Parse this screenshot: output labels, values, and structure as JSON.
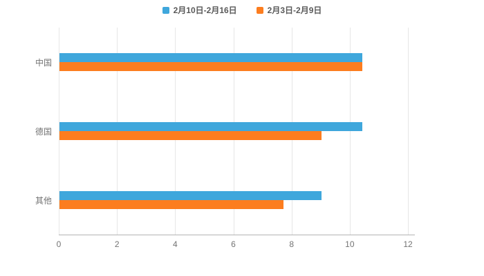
{
  "chart_data": {
    "type": "bar",
    "orientation": "horizontal",
    "title": "",
    "categories": [
      "中国",
      "德国",
      "其他"
    ],
    "series": [
      {
        "name": "2月10日-2月16日",
        "color": "#3fa7dc",
        "values": [
          10.4,
          10.4,
          9.0
        ]
      },
      {
        "name": "2月3日-2月9日",
        "color": "#fc7d1f",
        "values": [
          10.4,
          9.0,
          7.7
        ]
      }
    ],
    "xlim": [
      0,
      12
    ],
    "xticks": [
      "0",
      "2",
      "4",
      "6",
      "8",
      "10",
      "12"
    ],
    "grid": true,
    "legend_position": "top",
    "background_color": "#ffffff",
    "grid_color": "#e6e6e6",
    "axis_color": "#b3b3b3",
    "label_color": "#737373"
  }
}
